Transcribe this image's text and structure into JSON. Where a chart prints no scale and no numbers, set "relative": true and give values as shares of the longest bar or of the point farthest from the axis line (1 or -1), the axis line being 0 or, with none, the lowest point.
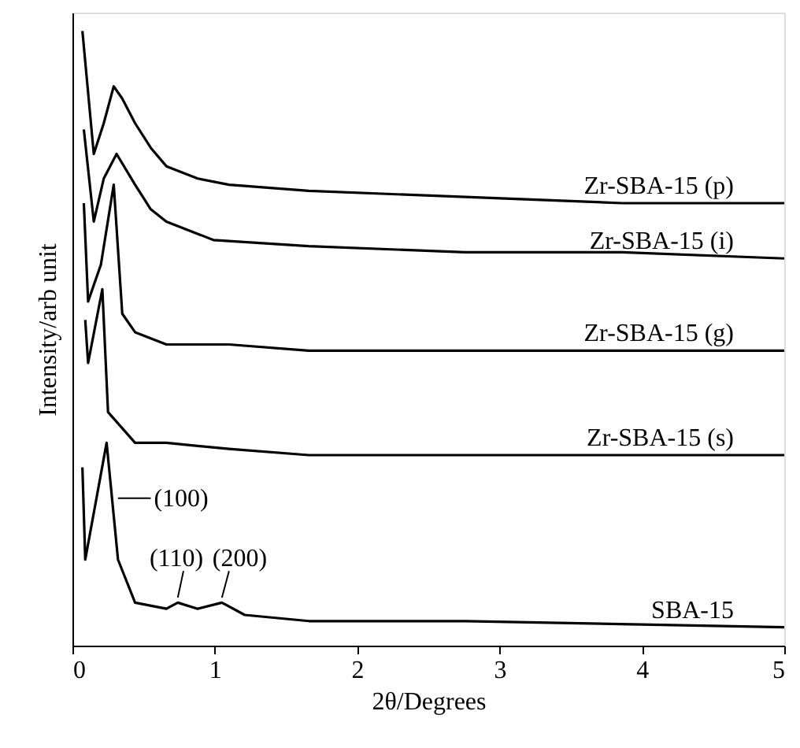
{
  "chart_data": {
    "type": "line",
    "relative": true,
    "xlabel": "2θ/Degrees",
    "ylabel": "Intensity/arb unit",
    "xlim": [
      0,
      5
    ],
    "xticks": [
      0,
      1,
      2,
      3,
      4,
      5
    ],
    "tick_labels": "x",
    "grid": false,
    "legend": false,
    "marker": "none",
    "line_style": "solid",
    "series": [
      {
        "name": "Zr-SBA-15 (p)",
        "color": "#000000",
        "x": [
          0.07,
          0.15,
          0.22,
          0.29,
          0.35,
          0.44,
          0.55,
          0.66,
          0.88,
          1.1,
          1.66,
          2.76,
          3.86,
          5.0
        ],
        "values": [
          1.0,
          0.8,
          0.85,
          0.91,
          0.89,
          0.85,
          0.81,
          0.78,
          0.76,
          0.75,
          0.74,
          0.73,
          0.72,
          0.72
        ]
      },
      {
        "name": "Zr-SBA-15 (i)",
        "color": "#000000",
        "x": [
          0.08,
          0.15,
          0.22,
          0.31,
          0.44,
          0.55,
          0.66,
          0.99,
          1.66,
          2.76,
          3.86,
          5.0
        ],
        "values": [
          0.84,
          0.69,
          0.76,
          0.8,
          0.75,
          0.71,
          0.69,
          0.66,
          0.65,
          0.64,
          0.64,
          0.63
        ]
      },
      {
        "name": "Zr-SBA-15 (g)",
        "color": "#000000",
        "x": [
          0.08,
          0.11,
          0.2,
          0.29,
          0.35,
          0.44,
          0.66,
          1.1,
          1.66,
          5.0
        ],
        "values": [
          0.72,
          0.56,
          0.62,
          0.75,
          0.54,
          0.51,
          0.49,
          0.49,
          0.48,
          0.48
        ]
      },
      {
        "name": "Zr-SBA-15 (s)",
        "color": "#000000",
        "x": [
          0.09,
          0.11,
          0.21,
          0.25,
          0.44,
          0.66,
          1.1,
          1.66,
          5.0
        ],
        "values": [
          0.53,
          0.46,
          0.58,
          0.38,
          0.33,
          0.33,
          0.32,
          0.31,
          0.31
        ]
      },
      {
        "name": "SBA-15",
        "color": "#000000",
        "x": [
          0.07,
          0.09,
          0.24,
          0.32,
          0.44,
          0.66,
          0.74,
          0.88,
          1.05,
          1.21,
          1.66,
          2.76,
          5.0
        ],
        "values": [
          0.29,
          0.14,
          0.33,
          0.14,
          0.07,
          0.06,
          0.07,
          0.06,
          0.07,
          0.05,
          0.04,
          0.04,
          0.03
        ]
      }
    ],
    "annotations": [
      {
        "text": "(100)",
        "x": 0.3,
        "y": 0.24
      },
      {
        "text": "(110)",
        "x": 0.74,
        "y": 0.07
      },
      {
        "text": "(200)",
        "x": 1.05,
        "y": 0.07
      }
    ]
  }
}
